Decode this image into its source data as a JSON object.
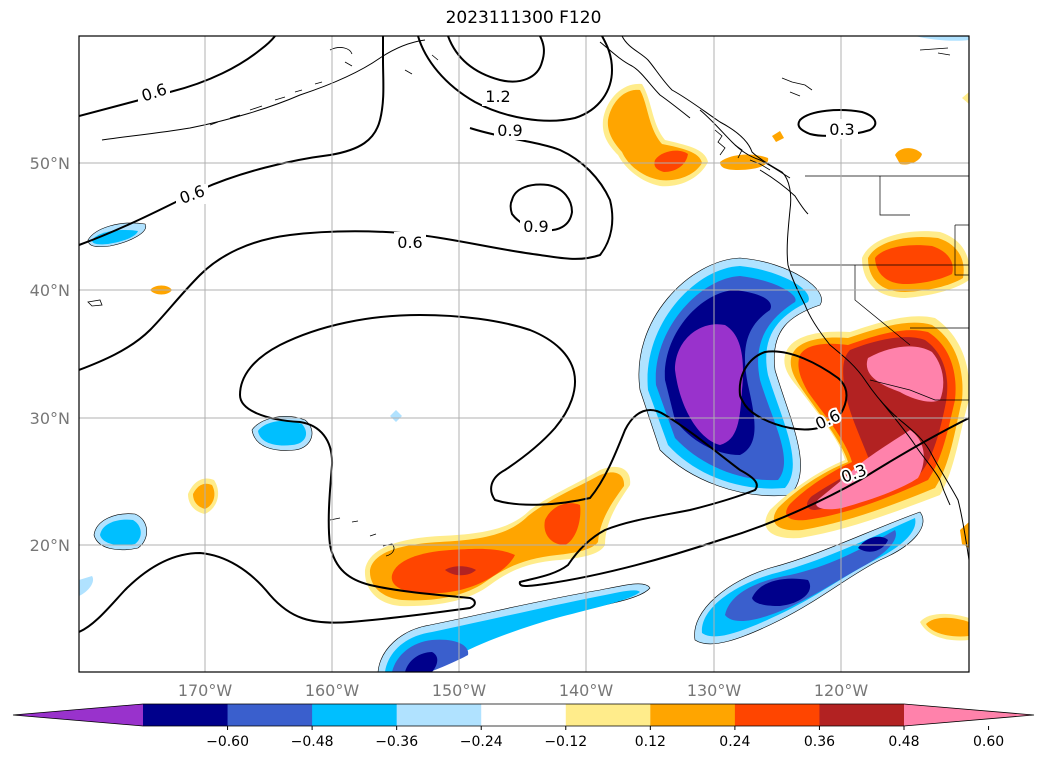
{
  "title": "2023111300 F120",
  "map": {
    "lat_labels": [
      "50°N",
      "40°N",
      "30°N",
      "20°N"
    ],
    "lon_labels": [
      "170°W",
      "160°W",
      "150°W",
      "140°W",
      "130°W",
      "120°W"
    ],
    "contour_labels": [
      {
        "text": "0.6"
      },
      {
        "text": "1.2"
      },
      {
        "text": "0.9"
      },
      {
        "text": "0.3"
      },
      {
        "text": "0.6"
      },
      {
        "text": "0.9"
      },
      {
        "text": "0.6"
      },
      {
        "text": "0.6"
      },
      {
        "text": "0.3"
      }
    ]
  },
  "colorbar": {
    "ticks": [
      "−0.60",
      "−0.48",
      "−0.36",
      "−0.24",
      "−0.12",
      "0.12",
      "0.24",
      "0.36",
      "0.48",
      "0.60"
    ],
    "colors": [
      "#9932cc",
      "#00008b",
      "#3a5fcd",
      "#00bfff",
      "#b0e2ff",
      "#ffffff",
      "#ffec8b",
      "#ffa500",
      "#ff4500",
      "#b22222",
      "#ff82ab"
    ]
  }
}
